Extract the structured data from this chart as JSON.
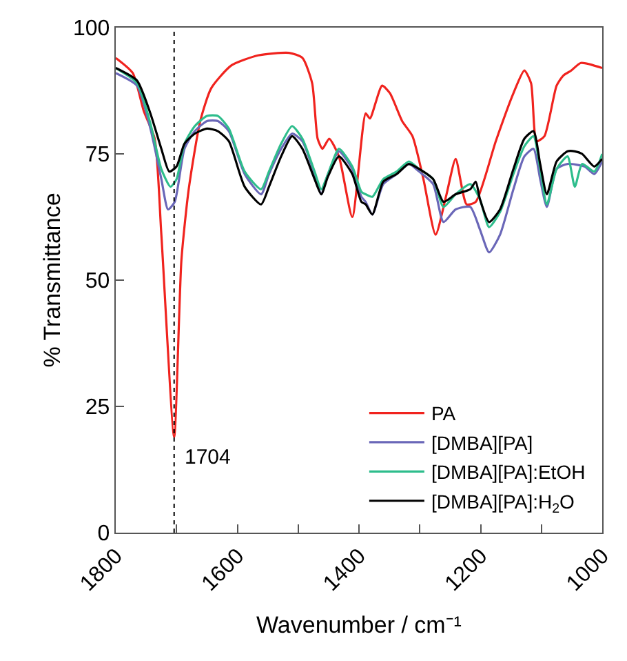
{
  "chart_data": {
    "type": "line",
    "xlabel": "Wavenumber / cm⁻¹",
    "ylabel": "% Transmittance",
    "xlim": [
      1800,
      1000
    ],
    "ylim": [
      0,
      100
    ],
    "xticks": [
      1800,
      {
        "value": 1700,
        "label": null
      },
      1600,
      {
        "value": 1500,
        "label": null
      },
      1400,
      {
        "value": 1300,
        "label": null
      },
      1200,
      {
        "value": 1100,
        "label": null
      },
      1000
    ],
    "yticks": [
      0,
      25,
      50,
      75,
      100
    ],
    "legend": "bottom right",
    "line_style": "solid",
    "marker": "none",
    "ref_lines": [
      {
        "axis": "x",
        "value": 1704,
        "color": "#000000",
        "line_style": "dotted"
      }
    ],
    "annotations": [
      {
        "text": "1704",
        "x": 1704,
        "y": 15
      }
    ],
    "series": [
      {
        "name": "PA",
        "color": "#f0231e",
        "x": [
          1800,
          1772,
          1754,
          1736,
          1725,
          1704,
          1692,
          1680,
          1661,
          1643,
          1610,
          1566,
          1515,
          1493,
          1477,
          1468,
          1460,
          1449,
          1433,
          1411,
          1389,
          1382,
          1362,
          1349,
          1329,
          1312,
          1294,
          1274,
          1256,
          1241,
          1223,
          1208,
          1175,
          1146,
          1128,
          1117,
          1108,
          1095,
          1075,
          1064,
          1051,
          1035,
          1000
        ],
        "values": [
          94,
          91,
          83.5,
          78,
          59,
          19,
          54,
          68,
          81.5,
          88,
          92.5,
          94.5,
          95,
          94,
          89,
          78,
          76,
          78,
          74.5,
          62.5,
          83,
          82,
          88.5,
          87,
          81.5,
          78.5,
          70,
          59,
          67,
          74,
          65,
          65.5,
          77.5,
          87,
          91.5,
          89,
          77.5,
          78.5,
          88.5,
          90.5,
          91.5,
          93,
          92
        ]
      },
      {
        "name": "[DMBA][PA]",
        "color": "#6a67b8",
        "x": [
          1800,
          1765,
          1743,
          1725,
          1714,
          1703,
          1687,
          1670,
          1650,
          1632,
          1614,
          1588,
          1561,
          1548,
          1528,
          1510,
          1493,
          1473,
          1462,
          1451,
          1433,
          1411,
          1396,
          1389,
          1378,
          1360,
          1338,
          1318,
          1301,
          1278,
          1261,
          1241,
          1217,
          1201,
          1186,
          1168,
          1146,
          1128,
          1113,
          1102,
          1091,
          1075,
          1057,
          1029,
          1013,
          1000
        ],
        "values": [
          91,
          88.5,
          80,
          70,
          64,
          65.5,
          76,
          79.5,
          81.5,
          81.5,
          79.5,
          71,
          67,
          71,
          76,
          79,
          77.5,
          71,
          67,
          71,
          75.5,
          72,
          66.5,
          65.5,
          63,
          69,
          71,
          73,
          71.5,
          69,
          61.5,
          64,
          64.5,
          60,
          55.5,
          59,
          68,
          74.5,
          76,
          70,
          64.5,
          72,
          73,
          72.5,
          71,
          73.5
        ]
      },
      {
        "name": "[DMBA][PA]:EtOH",
        "color": "#2ebd8c",
        "x": [
          1800,
          1765,
          1743,
          1725,
          1710,
          1700,
          1687,
          1670,
          1650,
          1632,
          1614,
          1588,
          1561,
          1548,
          1528,
          1510,
          1493,
          1473,
          1462,
          1451,
          1433,
          1411,
          1396,
          1389,
          1378,
          1360,
          1338,
          1318,
          1301,
          1278,
          1261,
          1241,
          1217,
          1201,
          1186,
          1168,
          1146,
          1128,
          1113,
          1102,
          1091,
          1075,
          1057,
          1045,
          1033,
          1013,
          1000
        ],
        "values": [
          92,
          89,
          81,
          72,
          68.5,
          70,
          77,
          80.5,
          82.5,
          82.5,
          80,
          71.5,
          68,
          71.5,
          77,
          80.5,
          78,
          71.5,
          68,
          71,
          76,
          72.5,
          67.5,
          67,
          66.5,
          70,
          71.5,
          73.5,
          72,
          70,
          64.5,
          67,
          69,
          66,
          60.5,
          63.5,
          71,
          76.5,
          78.5,
          72,
          65,
          72,
          74.5,
          68.5,
          73,
          71.5,
          75
        ]
      },
      {
        "name": "[DMBA][PA]:H$_{2}$O",
        "color": "#000000",
        "x": [
          1800,
          1765,
          1743,
          1725,
          1712,
          1700,
          1687,
          1670,
          1650,
          1632,
          1614,
          1588,
          1561,
          1548,
          1528,
          1510,
          1493,
          1473,
          1462,
          1451,
          1433,
          1411,
          1396,
          1389,
          1378,
          1360,
          1338,
          1318,
          1301,
          1278,
          1261,
          1241,
          1217,
          1208,
          1201,
          1186,
          1168,
          1146,
          1128,
          1113,
          1102,
          1091,
          1075,
          1057,
          1045,
          1033,
          1013,
          1000
        ],
        "values": [
          92,
          89.5,
          83,
          76,
          71.5,
          72.5,
          77,
          79,
          80,
          79.5,
          77.5,
          68.5,
          65,
          68.5,
          74.5,
          78.5,
          76,
          70,
          67,
          70.5,
          74.5,
          71,
          65.5,
          65,
          63,
          69.5,
          71,
          73,
          72,
          70,
          65.5,
          67,
          68,
          69.5,
          66,
          61.5,
          64,
          72,
          78,
          79.5,
          73,
          67,
          73.5,
          75.5,
          75.5,
          75,
          72.5,
          74
        ]
      }
    ]
  }
}
